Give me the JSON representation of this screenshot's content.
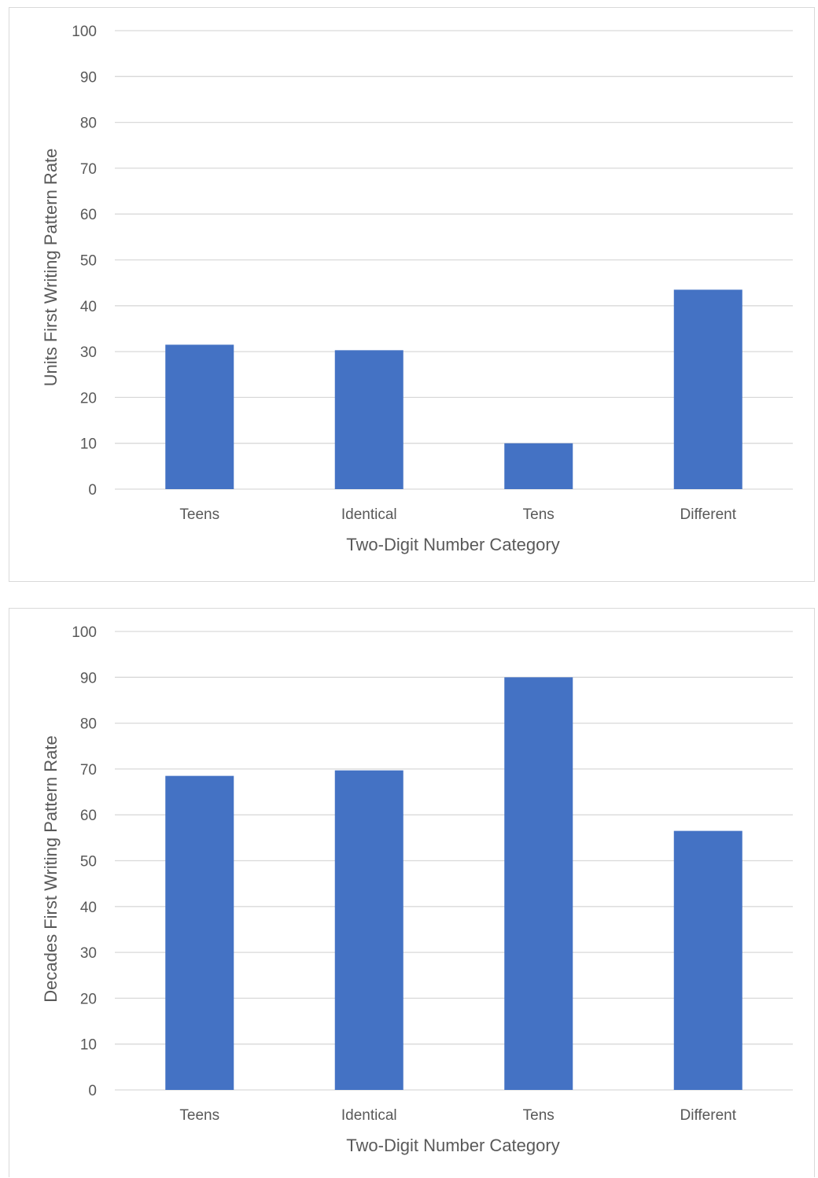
{
  "colors": {
    "bar": "#4472c4",
    "gridline": "#d9d9d9",
    "text": "#595959",
    "panel_border": "#d9d9d9"
  },
  "chart_data": [
    {
      "type": "bar",
      "categories": [
        "Teens",
        "Identical",
        "Tens",
        "Different"
      ],
      "values": [
        31.5,
        30.3,
        10.0,
        43.5
      ],
      "title": "",
      "xlabel": "Two-Digit Number Category",
      "ylabel": "Units First Writing Pattern Rate",
      "ylim": [
        0,
        100
      ],
      "yticks": [
        "0",
        "10",
        "20",
        "30",
        "40",
        "50",
        "60",
        "70",
        "80",
        "90",
        "100"
      ],
      "grid": true,
      "legend": "none"
    },
    {
      "type": "bar",
      "categories": [
        "Teens",
        "Identical",
        "Tens",
        "Different"
      ],
      "values": [
        68.5,
        69.7,
        90.0,
        56.5
      ],
      "title": "",
      "xlabel": "Two-Digit Number Category",
      "ylabel": "Decades First Writing Pattern Rate",
      "ylim": [
        0,
        100
      ],
      "yticks": [
        "0",
        "10",
        "20",
        "30",
        "40",
        "50",
        "60",
        "70",
        "80",
        "90",
        "100"
      ],
      "grid": true,
      "legend": "none"
    }
  ]
}
